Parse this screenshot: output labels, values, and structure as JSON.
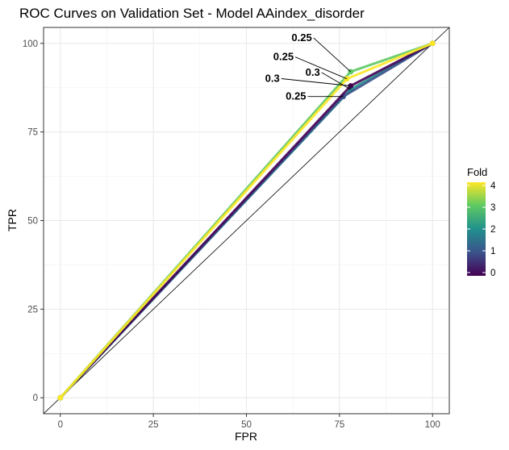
{
  "chart_data": {
    "type": "line",
    "title": "ROC Curves on Validation Set - Model AAindex_disorder",
    "xlabel": "FPR",
    "ylabel": "TPR",
    "xlim": [
      -4.5,
      104.5
    ],
    "ylim": [
      -4.5,
      104.5
    ],
    "x_ticks": [
      0,
      25,
      50,
      75,
      100
    ],
    "y_ticks": [
      0,
      25,
      50,
      75,
      100
    ],
    "grid": true,
    "legend": {
      "title": "Fold",
      "position": "right",
      "ticks": [
        0,
        1,
        2,
        3,
        4
      ],
      "colorscale": [
        "#440154",
        "#3b528b",
        "#21908d",
        "#5dc963",
        "#fde725"
      ]
    },
    "diagonal": true,
    "series": [
      {
        "fold": 0,
        "color": "#440154",
        "x": [
          0,
          78,
          100
        ],
        "y": [
          0,
          88,
          100
        ]
      },
      {
        "fold": 1,
        "color": "#3b528b",
        "x": [
          0,
          76,
          100
        ],
        "y": [
          0,
          85,
          100
        ]
      },
      {
        "fold": 2,
        "color": "#21908d",
        "x": [
          0,
          78,
          100
        ],
        "y": [
          0,
          87,
          100
        ]
      },
      {
        "fold": 3,
        "color": "#5dc963",
        "x": [
          0,
          78,
          100
        ],
        "y": [
          0,
          92,
          100
        ]
      },
      {
        "fold": 4,
        "color": "#fde725",
        "x": [
          0,
          77,
          100
        ],
        "y": [
          0,
          90,
          100
        ]
      }
    ],
    "annotations": [
      {
        "text": "0.25",
        "fold": 3,
        "x": 78,
        "y": 92
      },
      {
        "text": "0.25",
        "fold": 4,
        "x": 77,
        "y": 90
      },
      {
        "text": "0.3",
        "fold": 2,
        "x": 78,
        "y": 87
      },
      {
        "text": "0.3",
        "fold": 0,
        "x": 78,
        "y": 88
      },
      {
        "text": "0.25",
        "fold": 1,
        "x": 76,
        "y": 85
      }
    ]
  }
}
